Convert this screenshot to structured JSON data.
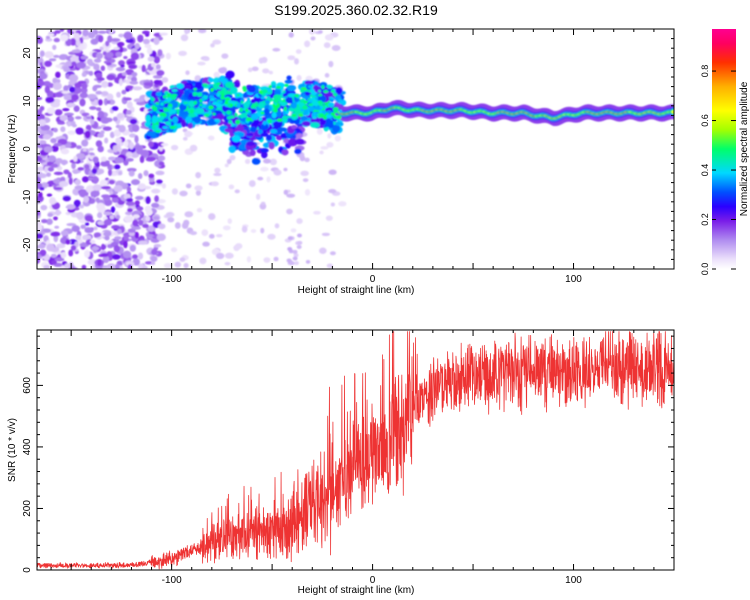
{
  "figure_title": "S199.2025.360.02.32.R19",
  "chart_data": [
    {
      "type": "heatmap",
      "title": "S199.2025.360.02.32.R19",
      "xlabel": "Height of straight line (km)",
      "ylabel": "Frequency (Hz)",
      "xlim": [
        -167,
        150
      ],
      "ylim": [
        -25,
        25
      ],
      "x_ticks": [
        -100,
        0,
        100
      ],
      "y_ticks": [
        -20,
        -10,
        0,
        10,
        20
      ],
      "colorbar": {
        "label": "Normalized spectral amplitude",
        "range": [
          0.0,
          0.97
        ],
        "ticks": [
          0.0,
          0.2,
          0.4,
          0.6,
          0.8
        ],
        "colors": [
          "#ffffff",
          "#ece1fb",
          "#b08cf0",
          "#7a1de8",
          "#2a00ff",
          "#0050ff",
          "#00d8ff",
          "#00ff6a",
          "#a4ff00",
          "#ffff00",
          "#ffb000",
          "#ff3000",
          "#ff0060",
          "#ff0090"
        ]
      },
      "ridge": {
        "description_points": [
          {
            "x": -110,
            "y": 7
          },
          {
            "x": -95,
            "y": 9
          },
          {
            "x": -80,
            "y": 10
          },
          {
            "x": -60,
            "y": 9
          },
          {
            "x": -40,
            "y": 10
          },
          {
            "x": -25,
            "y": 9
          },
          {
            "x": -15,
            "y": 7.5
          },
          {
            "x": 0,
            "y": 7.5
          },
          {
            "x": 10,
            "y": 8.5
          },
          {
            "x": 25,
            "y": 8
          },
          {
            "x": 45,
            "y": 8
          },
          {
            "x": 60,
            "y": 7.5
          },
          {
            "x": 75,
            "y": 7.5
          },
          {
            "x": 90,
            "y": 6.5
          },
          {
            "x": 105,
            "y": 7.5
          },
          {
            "x": 120,
            "y": 7.5
          },
          {
            "x": 150,
            "y": 7.5
          }
        ]
      }
    },
    {
      "type": "line",
      "xlabel": "Height of straight line (km)",
      "ylabel": "SNR (10 * v/v)",
      "xlim": [
        -167,
        150
      ],
      "ylim": [
        0,
        780
      ],
      "x_ticks": [
        -100,
        0,
        100
      ],
      "y_ticks": [
        0,
        200,
        400,
        600
      ],
      "series": [
        {
          "name": "SNR",
          "color": "#ee3333",
          "trend_points": [
            {
              "x": -167,
              "y": 15
            },
            {
              "x": -120,
              "y": 15
            },
            {
              "x": -100,
              "y": 35
            },
            {
              "x": -80,
              "y": 90
            },
            {
              "x": -60,
              "y": 110
            },
            {
              "x": -40,
              "y": 150
            },
            {
              "x": -25,
              "y": 220
            },
            {
              "x": -15,
              "y": 300
            },
            {
              "x": -10,
              "y": 320
            },
            {
              "x": 0,
              "y": 360
            },
            {
              "x": 10,
              "y": 420
            },
            {
              "x": 25,
              "y": 560
            },
            {
              "x": 40,
              "y": 620
            },
            {
              "x": 60,
              "y": 640
            },
            {
              "x": 80,
              "y": 640
            },
            {
              "x": 100,
              "y": 650
            },
            {
              "x": 120,
              "y": 660
            },
            {
              "x": 150,
              "y": 670
            }
          ]
        }
      ]
    }
  ]
}
